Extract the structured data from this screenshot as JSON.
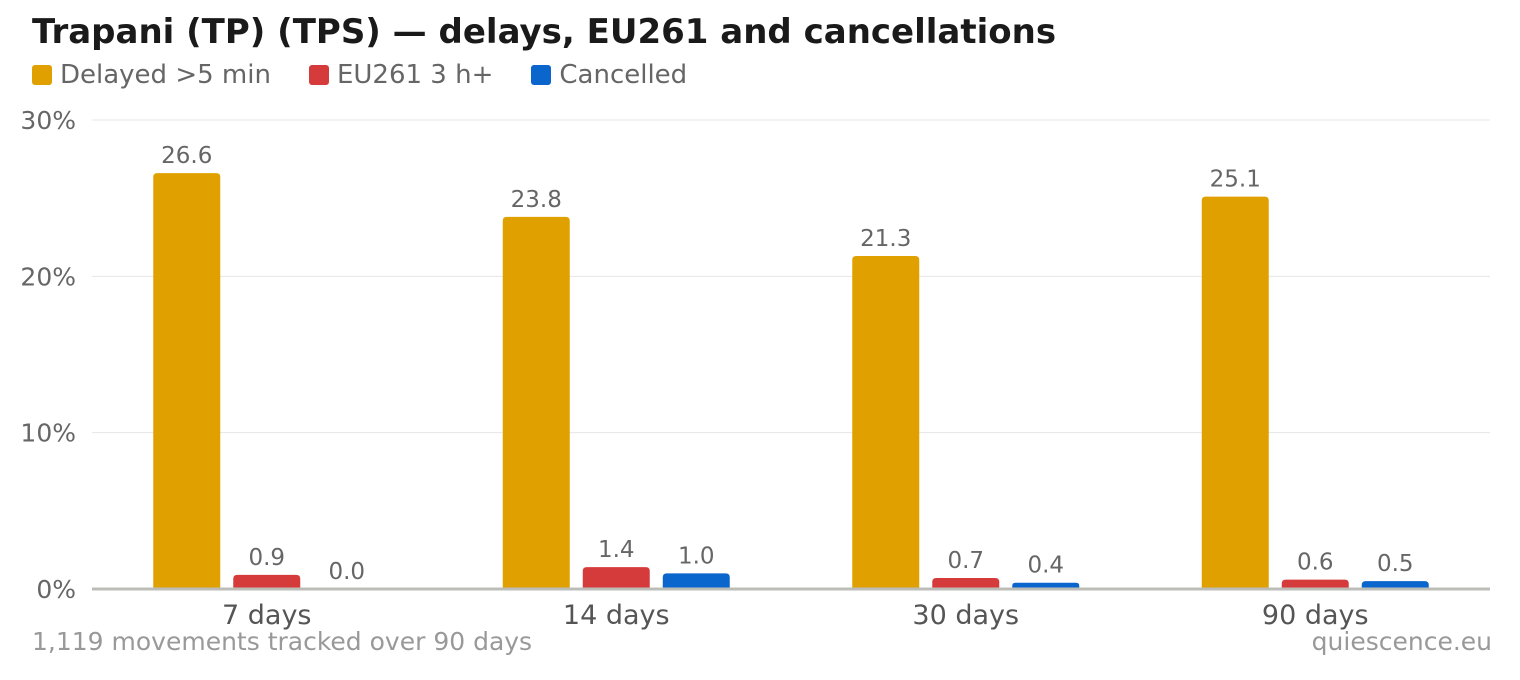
{
  "title": "Trapani (TP) (TPS) — delays, EU261 and cancellations",
  "footnote": "1,119 movements tracked over 90 days",
  "source": "quiescence.eu",
  "chart_data": {
    "type": "bar",
    "categories": [
      "7 days",
      "14 days",
      "30 days",
      "90 days"
    ],
    "series": [
      {
        "name": "Delayed >5 min",
        "color": "#e0a000",
        "values": [
          26.6,
          23.8,
          21.3,
          25.1
        ],
        "labels": [
          "26.6",
          "23.8",
          "21.3",
          "25.1"
        ]
      },
      {
        "name": "EU261 3 h+",
        "color": "#d63b3b",
        "values": [
          0.9,
          1.4,
          0.7,
          0.6
        ],
        "labels": [
          "0.9",
          "1.4",
          "0.7",
          "0.6"
        ]
      },
      {
        "name": "Cancelled",
        "color": "#0a66cc",
        "values": [
          0.0,
          1.0,
          0.4,
          0.5
        ],
        "labels": [
          "0.0",
          "1.0",
          "0.4",
          "0.5"
        ]
      }
    ],
    "yticks": [
      0,
      10,
      20,
      30
    ],
    "ytick_labels": [
      "0%",
      "10%",
      "20%",
      "30%"
    ],
    "ylim": [
      0,
      30
    ],
    "grid": true,
    "legend_position": "top-left"
  }
}
